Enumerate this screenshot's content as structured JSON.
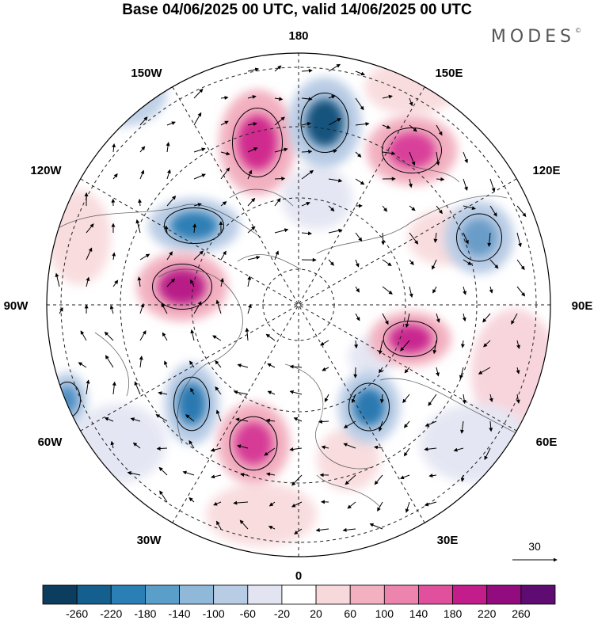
{
  "title": "Base 04/06/2025 00 UTC, valid 14/06/2025 00 UTC",
  "brand": "MODES",
  "brand_mark": "©",
  "longitude_labels": {
    "lon_180": "180",
    "lon_150E": "150E",
    "lon_120E": "120E",
    "lon_90E": "90E",
    "lon_60E": "60E",
    "lon_30E": "30E",
    "lon_0": "0",
    "lon_30W": "30W",
    "lon_60W": "60W",
    "lon_90W": "90W",
    "lon_120W": "120W",
    "lon_150W": "150W"
  },
  "vector_reference": {
    "value": "30"
  },
  "colorbar": {
    "ticks": [
      "-260",
      "-220",
      "-180",
      "-140",
      "-100",
      "-60",
      "-20",
      "20",
      "60",
      "100",
      "140",
      "180",
      "220",
      "260"
    ],
    "colors": [
      "#0d3d5e",
      "#155f8e",
      "#2a7fb5",
      "#5a9fca",
      "#8fb8d9",
      "#b9cce5",
      "#e2e4f2",
      "#ffffff",
      "#f8d9db",
      "#f2b0c0",
      "#ec84ad",
      "#e0509d",
      "#c21d8a",
      "#930c7f",
      "#5e0c71"
    ]
  },
  "anomaly_centers": [
    {
      "type": "positive",
      "color": "#d02a8e"
    },
    {
      "type": "negative",
      "color": "#12527d"
    },
    {
      "type": "positive",
      "color": "#d9409a"
    },
    {
      "type": "negative",
      "color": "#2f7fb5"
    },
    {
      "type": "negative",
      "color": "#6b9cc8"
    },
    {
      "type": "positive",
      "color": "#b81a87"
    },
    {
      "type": "positive",
      "color": "#c92790"
    },
    {
      "type": "negative",
      "color": "#2a79b1"
    },
    {
      "type": "negative",
      "color": "#2a79b1"
    },
    {
      "type": "positive",
      "color": "#d63b96"
    },
    {
      "type": "negative",
      "color": "#4e8ec3"
    }
  ]
}
